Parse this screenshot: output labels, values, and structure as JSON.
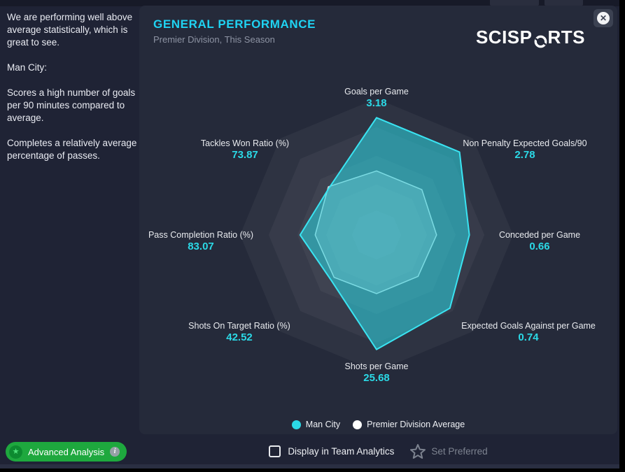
{
  "sidebar": {
    "paragraphs": [
      "We are performing well above average statistically, which is great to see.",
      "Man City:",
      "Scores a high number of goals per 90 minutes compared to average.",
      "Completes a relatively average percentage of passes."
    ]
  },
  "panel": {
    "title": "GENERAL PERFORMANCE",
    "subtitle": "Premier Division, This Season",
    "brand_left": "SCISP",
    "brand_right": "RTS"
  },
  "chart_data": {
    "type": "radar",
    "title": "GENERAL PERFORMANCE",
    "subtitle": "Premier Division, This Season",
    "axes": [
      {
        "label": "Goals per Game",
        "value": "3.18"
      },
      {
        "label": "Non Penalty Expected Goals/90",
        "value": "2.78"
      },
      {
        "label": "Conceded per Game",
        "value": "0.66"
      },
      {
        "label": "Expected Goals Against per Game",
        "value": "0.74"
      },
      {
        "label": "Shots per Game",
        "value": "25.68"
      },
      {
        "label": "Shots On Target Ratio (%)",
        "value": "42.52"
      },
      {
        "label": "Pass Completion Ratio (%)",
        "value": "83.07"
      },
      {
        "label": "Tackles Won Ratio (%)",
        "value": "73.87"
      }
    ],
    "series": [
      {
        "name": "Man City",
        "color": "#2bd9e6",
        "fill": "rgba(43,217,230,0.55)",
        "stroke": "#3ae4f2",
        "radii_fraction": [
          0.86,
          0.86,
          0.68,
          0.76,
          0.84,
          0.47,
          0.56,
          0.49
        ]
      },
      {
        "name": "Premier Division Average",
        "color": "#ffffff",
        "fill": "rgba(255,255,255,0.25)",
        "stroke": "rgba(255,255,255,0.8)",
        "radii_fraction": [
          0.47,
          0.47,
          0.44,
          0.43,
          0.43,
          0.44,
          0.45,
          0.5
        ]
      }
    ],
    "grid_rings": [
      1,
      0.79,
      0.58,
      0.37,
      0.18
    ],
    "legend_position": "bottom"
  },
  "legend": {
    "items": [
      {
        "label": "Man City",
        "color": "#2bd9e6"
      },
      {
        "label": "Premier Division Average",
        "color": "#ffffff"
      }
    ]
  },
  "footer": {
    "checkbox_label": "Display in Team Analytics",
    "checkbox_checked": false,
    "set_preferred_label": "Set Preferred",
    "advanced_button_label": "Advanced Analysis"
  },
  "icons": {
    "close": "✕",
    "advanced_star": "★",
    "info": "i"
  },
  "colors": {
    "accent_cyan": "#1fd3f2",
    "value_cyan": "#2bd9e6",
    "panel_bg": "#252a3a",
    "backdrop": "#1f2335",
    "button_green": "#1ea83e"
  }
}
